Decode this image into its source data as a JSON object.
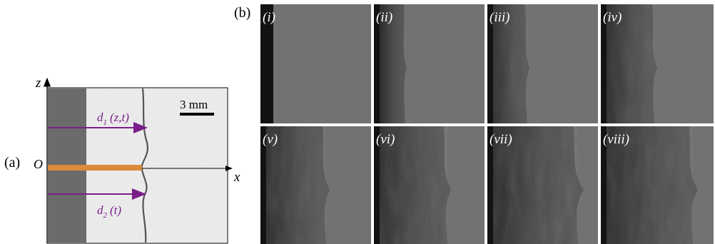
{
  "panel_a": {
    "label": "(a)",
    "axis_z": "z",
    "axis_x": "x",
    "origin": "O",
    "scale_bar": "3 mm",
    "d1_label": "d",
    "d1_sub": "1",
    "d1_args": "(z,t)",
    "d2_label": "d",
    "d2_sub": "2",
    "d2_args": "(t)",
    "colors": {
      "arrow": "#7a1f8a",
      "orange_bar": "#d98a3a",
      "dark_region": "#6b6b6b"
    }
  },
  "panel_b": {
    "label": "(b)",
    "frames": [
      "(i)",
      "(ii)",
      "(iii)",
      "(iv)",
      "(v)",
      "(vi)",
      "(vii)",
      "(viii)"
    ]
  }
}
